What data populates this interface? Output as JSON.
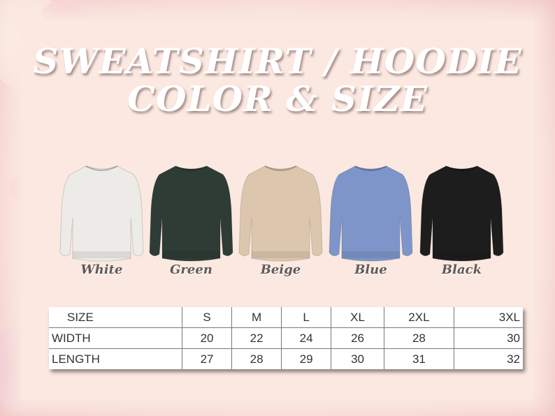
{
  "title": {
    "line1": "SWEATSHIRT / HOODIE",
    "line2": "COLOR & SIZE"
  },
  "colors": [
    {
      "label": "White",
      "hex": "#ecebe8"
    },
    {
      "label": "Green",
      "hex": "#2e3c35"
    },
    {
      "label": "Beige",
      "hex": "#dcc7ae"
    },
    {
      "label": "Blue",
      "hex": "#7d95c9"
    },
    {
      "label": "Black",
      "hex": "#1d1d1d"
    }
  ],
  "size_table": {
    "headers": [
      "SIZE",
      "S",
      "M",
      "L",
      "XL",
      "2XL",
      "3XL"
    ],
    "rows": [
      [
        "WIDTH",
        "20",
        "22",
        "24",
        "26",
        "28",
        "30"
      ],
      [
        "LENGTH",
        "27",
        "28",
        "29",
        "30",
        "31",
        "32"
      ]
    ]
  }
}
